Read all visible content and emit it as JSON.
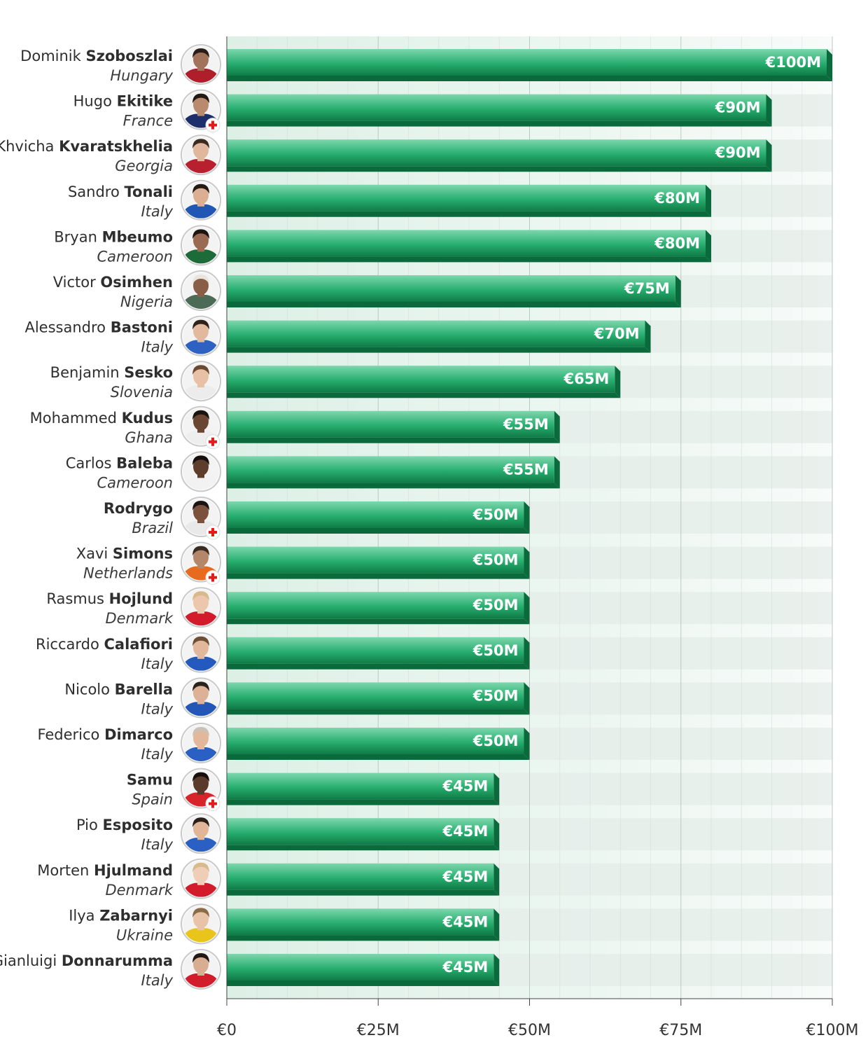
{
  "chart_data": {
    "type": "bar",
    "orientation": "horizontal",
    "title": "",
    "xlabel": "",
    "ylabel": "",
    "xlim": [
      0,
      100
    ],
    "x_ticks": [
      {
        "value": 0,
        "label": "€0"
      },
      {
        "value": 25,
        "label": "€25M"
      },
      {
        "value": 50,
        "label": "€50M"
      },
      {
        "value": 75,
        "label": "€75M"
      },
      {
        "value": 100,
        "label": "€100M"
      }
    ],
    "grid": true,
    "colors": {
      "bar_top": "#7dd7ad",
      "bar_mid": "#27ae6f",
      "bar_bottom": "#0f7a45",
      "bar_edge": "#0b6a3b",
      "row_band": "#e4ece8",
      "grid_line": "#cfd8d3",
      "injury_badge": "#e21b1b"
    },
    "players": [
      {
        "first": "Dominik",
        "last": "Szoboszlai",
        "country": "Hungary",
        "value": 100,
        "label": "€100M",
        "injured": false
      },
      {
        "first": "Hugo",
        "last": "Ekitike",
        "country": "France",
        "value": 90,
        "label": "€90M",
        "injured": true
      },
      {
        "first": "Khvicha",
        "last": "Kvaratskhelia",
        "country": "Georgia",
        "value": 90,
        "label": "€90M",
        "injured": false
      },
      {
        "first": "Sandro",
        "last": "Tonali",
        "country": "Italy",
        "value": 80,
        "label": "€80M",
        "injured": false
      },
      {
        "first": "Bryan",
        "last": "Mbeumo",
        "country": "Cameroon",
        "value": 80,
        "label": "€80M",
        "injured": false
      },
      {
        "first": "Victor",
        "last": "Osimhen",
        "country": "Nigeria",
        "value": 75,
        "label": "€75M",
        "injured": false
      },
      {
        "first": "Alessandro",
        "last": "Bastoni",
        "country": "Italy",
        "value": 70,
        "label": "€70M",
        "injured": false
      },
      {
        "first": "Benjamin",
        "last": "Sesko",
        "country": "Slovenia",
        "value": 65,
        "label": "€65M",
        "injured": false
      },
      {
        "first": "Mohammed",
        "last": "Kudus",
        "country": "Ghana",
        "value": 55,
        "label": "€55M",
        "injured": true
      },
      {
        "first": "Carlos",
        "last": "Baleba",
        "country": "Cameroon",
        "value": 55,
        "label": "€55M",
        "injured": false
      },
      {
        "first": "",
        "last": "Rodrygo",
        "country": "Brazil",
        "value": 50,
        "label": "€50M",
        "injured": true
      },
      {
        "first": "Xavi",
        "last": "Simons",
        "country": "Netherlands",
        "value": 50,
        "label": "€50M",
        "injured": true
      },
      {
        "first": "Rasmus",
        "last": "Hojlund",
        "country": "Denmark",
        "value": 50,
        "label": "€50M",
        "injured": false
      },
      {
        "first": "Riccardo",
        "last": "Calafiori",
        "country": "Italy",
        "value": 50,
        "label": "€50M",
        "injured": false
      },
      {
        "first": "Nicolo",
        "last": "Barella",
        "country": "Italy",
        "value": 50,
        "label": "€50M",
        "injured": false
      },
      {
        "first": "Federico",
        "last": "Dimarco",
        "country": "Italy",
        "value": 50,
        "label": "€50M",
        "injured": false
      },
      {
        "first": "",
        "last": "Samu",
        "country": "Spain",
        "value": 45,
        "label": "€45M",
        "injured": true
      },
      {
        "first": "Pio",
        "last": "Esposito",
        "country": "Italy",
        "value": 45,
        "label": "€45M",
        "injured": false
      },
      {
        "first": "Morten",
        "last": "Hjulmand",
        "country": "Denmark",
        "value": 45,
        "label": "€45M",
        "injured": false
      },
      {
        "first": "Ilya",
        "last": "Zabarnyi",
        "country": "Ukraine",
        "value": 45,
        "label": "€45M",
        "injured": false
      },
      {
        "first": "Gianluigi",
        "last": "Donnarumma",
        "country": "Italy",
        "value": 45,
        "label": "€45M",
        "injured": false
      }
    ],
    "avatar_colors": [
      {
        "skin": "#a0735a",
        "hair": "#2a1d17",
        "shirt": "#b01d2b"
      },
      {
        "skin": "#b98a6e",
        "hair": "#221915",
        "shirt": "#1c2f6a"
      },
      {
        "skin": "#e0b79c",
        "hair": "#3b2a1f",
        "shirt": "#b9202f"
      },
      {
        "skin": "#dcae92",
        "hair": "#241a14",
        "shirt": "#2156b5"
      },
      {
        "skin": "#9a6b52",
        "hair": "#1c1411",
        "shirt": "#1e6b3a"
      },
      {
        "skin": "#8a5d46",
        "hair": "#e8e4de",
        "shirt": "#4b6b57"
      },
      {
        "skin": "#e2b99c",
        "hair": "#2e221b",
        "shirt": "#2e62c2"
      },
      {
        "skin": "#e7c0a6",
        "hair": "#6b4a33",
        "shirt": "#ececec"
      },
      {
        "skin": "#6b4633",
        "hair": "#1a1310",
        "shirt": "#eeeeee"
      },
      {
        "skin": "#5e3d2d",
        "hair": "#15100d",
        "shirt": "#f2f2f2"
      },
      {
        "skin": "#7a523e",
        "hair": "#1a1310",
        "shirt": "#e9e9e9"
      },
      {
        "skin": "#b4876a",
        "hair": "#3a2b21",
        "shirt": "#e86a1f"
      },
      {
        "skin": "#ecc7ae",
        "hair": "#d8b98a",
        "shirt": "#d21c2b"
      },
      {
        "skin": "#e1b89c",
        "hair": "#6e4f36",
        "shirt": "#2459c0"
      },
      {
        "skin": "#ddb196",
        "hair": "#2b211b",
        "shirt": "#2456b8"
      },
      {
        "skin": "#e2b79c",
        "hair": "#c9c1b6",
        "shirt": "#2a5fc3"
      },
      {
        "skin": "#5a3a2b",
        "hair": "#15100d",
        "shirt": "#d8232a"
      },
      {
        "skin": "#e0b598",
        "hair": "#2a1f19",
        "shirt": "#2a5fc3"
      },
      {
        "skin": "#efcdb6",
        "hair": "#d7bb8c",
        "shirt": "#d21c2b"
      },
      {
        "skin": "#e8c3a8",
        "hair": "#8a6a47",
        "shirt": "#e9c51c"
      },
      {
        "skin": "#d9ad91",
        "hair": "#201814",
        "shirt": "#d21c2b"
      }
    ]
  }
}
